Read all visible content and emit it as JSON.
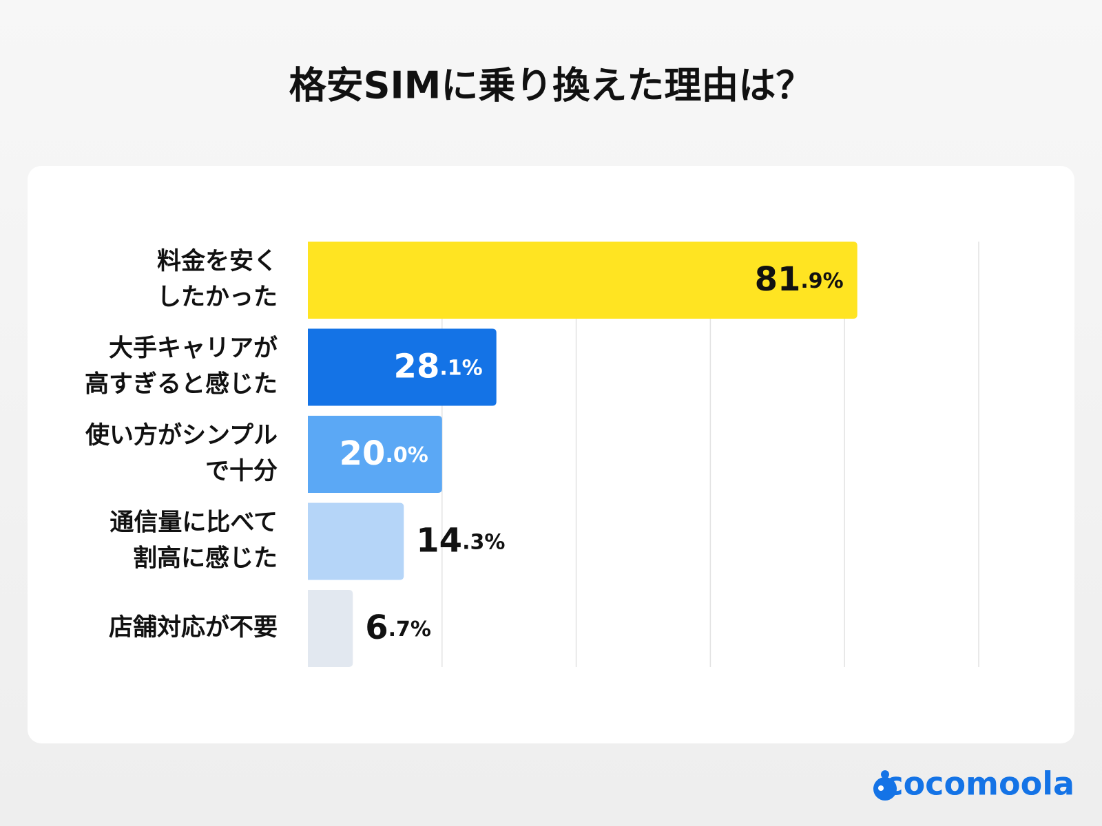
{
  "chart_data": {
    "type": "bar",
    "orientation": "horizontal",
    "title": "格安SIMに乗り換えた理由は？",
    "categories": [
      "料金を安く\nしたかった",
      "大手キャリアが\n高すぎると感じた",
      "使い方がシンプル\nで十分",
      "通信量に比べて\n割高に感じた",
      "店舗対応が不要"
    ],
    "values": [
      81.9,
      28.1,
      20.0,
      14.3,
      6.7
    ],
    "value_labels": [
      "81.9%",
      "28.1%",
      "20.0%",
      "14.3%",
      "6.7%"
    ],
    "colors": [
      "#FFE422",
      "#1473E6",
      "#5BA8F5",
      "#B5D5F8",
      "#E2E8F0"
    ],
    "xlim": [
      0,
      100
    ],
    "xticks": [
      20,
      40,
      60,
      80,
      100
    ],
    "grid": true
  },
  "logo": "cocomoola"
}
